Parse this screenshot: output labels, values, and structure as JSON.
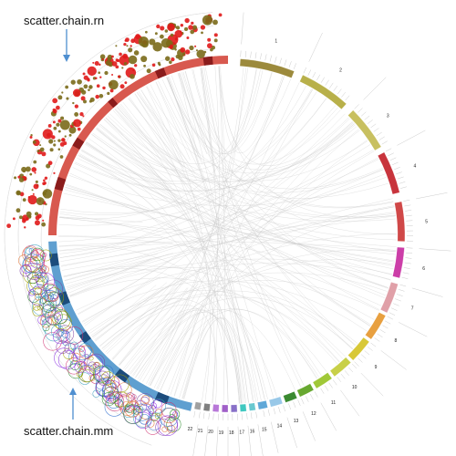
{
  "labels": {
    "top": "scatter.chain.rn",
    "bottom": "scatter.chain.mm"
  },
  "chromosomes": {
    "right_side": [
      "1",
      "2",
      "3",
      "4",
      "5",
      "6",
      "7",
      "8",
      "9",
      "10",
      "11",
      "12",
      "13",
      "14",
      "15",
      "16",
      "17",
      "18",
      "19",
      "20",
      "21",
      "22"
    ]
  },
  "colors": {
    "rn_band": "#d8594f",
    "mm_band": "#5f9fd0",
    "rn_point_light": "#7a6a1a",
    "rn_point_red": "#e01a1a",
    "arrow": "#4f8fd0",
    "link": "#c9c9c9"
  }
}
